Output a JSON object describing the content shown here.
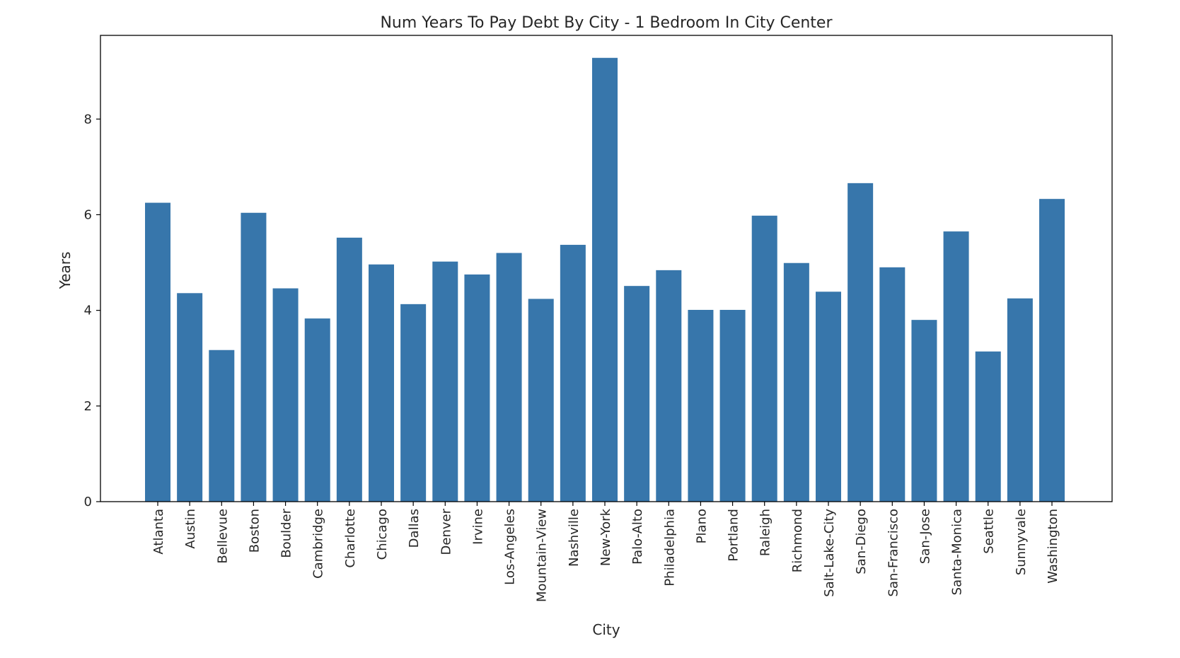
{
  "chart_data": {
    "type": "bar",
    "title": "Num Years To Pay Debt By City - 1 Bedroom In City Center",
    "xlabel": "City",
    "ylabel": "Years",
    "ylim": [
      0,
      9.75
    ],
    "yticks": [
      0,
      2,
      4,
      6,
      8
    ],
    "grid": false,
    "legend": "none",
    "bar_color": "#3776ab",
    "categories": [
      "Atlanta",
      "Austin",
      "Bellevue",
      "Boston",
      "Boulder",
      "Cambridge",
      "Charlotte",
      "Chicago",
      "Dallas",
      "Denver",
      "Irvine",
      "Los-Angeles",
      "Mountain-View",
      "Nashville",
      "New-York",
      "Palo-Alto",
      "Philadelphia",
      "Plano",
      "Portland",
      "Raleigh",
      "Richmond",
      "Salt-Lake-City",
      "San-Diego",
      "San-Francisco",
      "San-Jose",
      "Santa-Monica",
      "Seattle",
      "Sunnyvale",
      "Washington"
    ],
    "values": [
      6.25,
      4.36,
      3.17,
      6.04,
      4.46,
      3.83,
      5.52,
      4.96,
      4.13,
      5.02,
      4.75,
      5.2,
      4.24,
      5.37,
      9.28,
      4.51,
      4.84,
      4.01,
      4.01,
      5.98,
      4.99,
      4.39,
      6.66,
      4.9,
      3.8,
      5.65,
      3.14,
      4.25,
      6.33
    ]
  }
}
